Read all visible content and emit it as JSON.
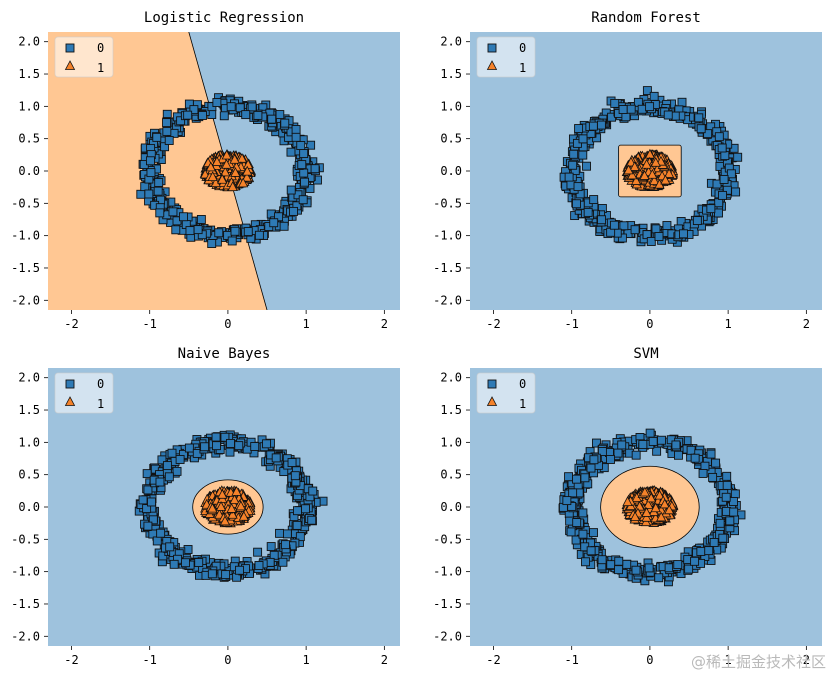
{
  "watermark": "@稀土掘金技术社区",
  "colors": {
    "class0_region": "#9ec2dd",
    "class1_region": "#ffc793",
    "class0_marker": "#2e7ab5",
    "class1_marker": "#f5822a",
    "edge": "#111111"
  },
  "legend": {
    "entries": [
      "0",
      "1"
    ],
    "location": "upper left"
  },
  "chart_data": [
    {
      "type": "scatter",
      "title": "Logistic Regression",
      "xlim": [
        -2.3,
        2.2
      ],
      "ylim": [
        -2.15,
        2.15
      ],
      "xticks": [
        "-2",
        "-1",
        "0",
        "1",
        "2"
      ],
      "yticks": [
        "2.0",
        "1.5",
        "1.0",
        "0.5",
        "0.0",
        "-0.5",
        "-1.0",
        "-1.5",
        "-2.0"
      ],
      "decision_boundary": {
        "shape": "line",
        "points": [
          [
            -0.5,
            2.15
          ],
          [
            0.5,
            -2.15
          ]
        ],
        "class1_side": "left"
      },
      "series": [
        {
          "name": "0",
          "marker": "square",
          "shape": "ring",
          "radius_mean": 1.0,
          "radius_spread": 0.1,
          "count": 500
        },
        {
          "name": "1",
          "marker": "triangle",
          "shape": "disc",
          "center": [
            0,
            0
          ],
          "radius": 0.3,
          "count": 500
        }
      ]
    },
    {
      "type": "scatter",
      "title": "Random Forest",
      "xlim": [
        -2.3,
        2.2
      ],
      "ylim": [
        -2.15,
        2.15
      ],
      "xticks": [
        "-2",
        "-1",
        "0",
        "1",
        "2"
      ],
      "yticks": [
        "2.0",
        "1.5",
        "1.0",
        "0.5",
        "0.0",
        "-0.5",
        "-1.0",
        "-1.5",
        "-2.0"
      ],
      "decision_boundary": {
        "shape": "rectangle",
        "xrange": [
          -0.4,
          0.4
        ],
        "yrange": [
          -0.4,
          0.4
        ]
      },
      "series": [
        {
          "name": "0",
          "marker": "square",
          "shape": "ring",
          "radius_mean": 1.0,
          "radius_spread": 0.1,
          "count": 500
        },
        {
          "name": "1",
          "marker": "triangle",
          "shape": "disc",
          "center": [
            0,
            0
          ],
          "radius": 0.3,
          "count": 500
        }
      ]
    },
    {
      "type": "scatter",
      "title": "Naive Bayes",
      "xlim": [
        -2.3,
        2.2
      ],
      "ylim": [
        -2.15,
        2.15
      ],
      "xticks": [
        "-2",
        "-1",
        "0",
        "1",
        "2"
      ],
      "yticks": [
        "2.0",
        "1.5",
        "1.0",
        "0.5",
        "0.0",
        "-0.5",
        "-1.0",
        "-1.5",
        "-2.0"
      ],
      "decision_boundary": {
        "shape": "ellipse",
        "center": [
          0,
          0
        ],
        "rx": 0.45,
        "ry": 0.42
      },
      "series": [
        {
          "name": "0",
          "marker": "square",
          "shape": "ring",
          "radius_mean": 1.0,
          "radius_spread": 0.1,
          "count": 500
        },
        {
          "name": "1",
          "marker": "triangle",
          "shape": "disc",
          "center": [
            0,
            0
          ],
          "radius": 0.3,
          "count": 500
        }
      ]
    },
    {
      "type": "scatter",
      "title": "SVM",
      "xlim": [
        -2.3,
        2.2
      ],
      "ylim": [
        -2.15,
        2.15
      ],
      "xticks": [
        "-2",
        "-1",
        "0",
        "1",
        "2"
      ],
      "yticks": [
        "2.0",
        "1.5",
        "1.0",
        "0.5",
        "0.0",
        "-0.5",
        "-1.0",
        "-1.5",
        "-2.0"
      ],
      "decision_boundary": {
        "shape": "ellipse",
        "center": [
          0,
          0
        ],
        "rx": 0.63,
        "ry": 0.63
      },
      "series": [
        {
          "name": "0",
          "marker": "square",
          "shape": "ring",
          "radius_mean": 1.0,
          "radius_spread": 0.1,
          "count": 500
        },
        {
          "name": "1",
          "marker": "triangle",
          "shape": "disc",
          "center": [
            0,
            0
          ],
          "radius": 0.3,
          "count": 500
        }
      ]
    }
  ]
}
